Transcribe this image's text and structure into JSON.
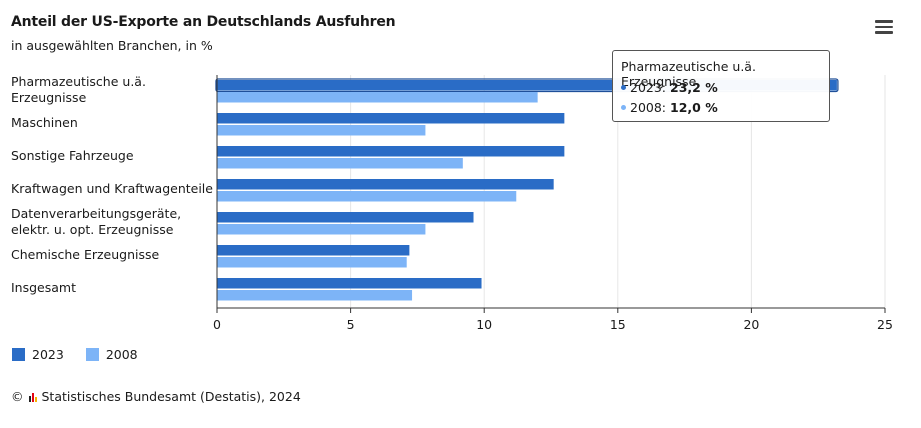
{
  "header": {
    "title": "Anteil der US-Exporte an Deutschlands Ausfuhren",
    "subtitle": "in ausgewählten Branchen, in %"
  },
  "menu": {
    "icon": "hamburger-menu-icon"
  },
  "colors": {
    "series_2023": "#2a6cc6",
    "series_2008": "#7db4f7",
    "grid": "#e6e6e6",
    "axis": "#333333"
  },
  "chart_data": {
    "type": "bar",
    "orientation": "horizontal",
    "categories": [
      [
        "Pharmazeutische u.ä.",
        "Erzeugnisse"
      ],
      [
        "Maschinen"
      ],
      [
        "Sonstige Fahrzeuge"
      ],
      [
        "Kraftwagen und Kraftwagenteile"
      ],
      [
        "Datenverarbeitungsgeräte,",
        "elektr. u. opt. Erzeugnisse"
      ],
      [
        "Chemische Erzeugnisse"
      ],
      [
        "Insgesamt"
      ]
    ],
    "series": [
      {
        "name": "2023",
        "values": [
          23.2,
          13.0,
          13.0,
          12.6,
          9.6,
          7.2,
          9.9
        ]
      },
      {
        "name": "2008",
        "values": [
          12.0,
          7.8,
          9.2,
          11.2,
          7.8,
          7.1,
          7.3
        ]
      }
    ],
    "xlim": [
      0,
      25
    ],
    "xticks": [
      0,
      5,
      10,
      15,
      20,
      25
    ],
    "grid": true,
    "legend": "bottom-left",
    "highlighted_category": 0
  },
  "tooltip": {
    "title": "Pharmazeutische u.ä. Erzeugnisse",
    "rows": [
      {
        "label": "2023:",
        "value": "23,2 %"
      },
      {
        "label": "2008:",
        "value": "12,0 %"
      }
    ]
  },
  "legend": {
    "items": [
      "2023",
      "2008"
    ]
  },
  "source": {
    "copyright": "©",
    "text": "Statistisches Bundesamt (Destatis), 2024"
  }
}
